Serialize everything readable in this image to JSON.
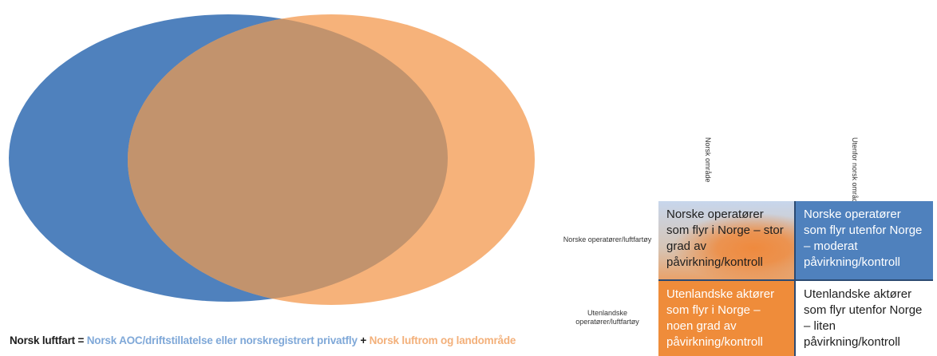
{
  "venn": {
    "left_color": "#4f81bd",
    "right_color": "#f6b27a",
    "overlap_color": "#c2936d"
  },
  "caption": {
    "prefix": "Norsk luftfart = ",
    "part1": "Norsk AOC/driftstillatelse eller norskregistrert privatfly",
    "plus": " + ",
    "part2": "Norsk luftrom og landområde"
  },
  "matrix": {
    "col_headers": [
      "Norsk område",
      "Utenfor norsk område"
    ],
    "row_headers": [
      "Norske operatører/luftfartøy",
      "Utenlandske operatører/luftfartøy"
    ],
    "cells": {
      "r1c1": "Norske operatører som flyr i Norge – stor grad av påvirkning/kontroll",
      "r1c2": "Norske operatører som flyr utenfor Norge – moderat påvirkning/kontroll",
      "r2c1": "Utenlandske aktører som flyr i Norge – noen grad av påvirkning/kontroll",
      "r2c2": "Utenlandske aktører som flyr utenfor Norge – liten påvirkning/kontroll"
    }
  }
}
